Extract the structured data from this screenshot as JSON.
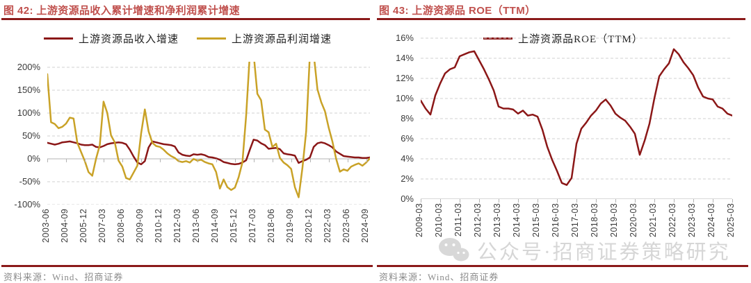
{
  "colors": {
    "title_text": "#C0504D",
    "rule_dark_red": "#8B1A1A",
    "series_revenue_red": "#8B1717",
    "series_profit_gold": "#C9A227",
    "series_roe_red": "#8B1717",
    "gridline": "#D0D0D0",
    "axis_line": "#B3B3B3",
    "axis_text": "#3A3A3A",
    "source_text": "#8A8A8A",
    "watermark_gray": "#B9B9B9"
  },
  "watermark": {
    "icon": "wechat-icon",
    "text": "公众号·招商证券策略研究"
  },
  "panels": [
    {
      "title": "图 42:  上游资源品收入累计增速和净利润累计增速",
      "source": "资料来源：Wind、招商证券",
      "chart_data": {
        "type": "line",
        "title": "上游资源品收入累计增速和净利润累计增速",
        "xlabel": "",
        "ylabel": "",
        "y_unit": "%",
        "ylim": [
          -100,
          200
        ],
        "y_step": 50,
        "grid": "horizontal-dashed",
        "legend_position": "top-center",
        "x_tick_every": 5,
        "x_tick_labels": [
          "2003-06",
          "2004-09",
          "2005-12",
          "2007-03",
          "2008-06",
          "2009-09",
          "2010-12",
          "2012-03",
          "2013-06",
          "2014-09",
          "2015-12",
          "2017-03",
          "2018-06",
          "2019-09",
          "2020-12",
          "2022-03",
          "2023-06",
          "2024-09"
        ],
        "x": [
          "2003-06",
          "2003-09",
          "2003-12",
          "2004-03",
          "2004-06",
          "2004-09",
          "2004-12",
          "2005-03",
          "2005-06",
          "2005-09",
          "2005-12",
          "2006-03",
          "2006-06",
          "2006-09",
          "2006-12",
          "2007-03",
          "2007-06",
          "2007-09",
          "2007-12",
          "2008-03",
          "2008-06",
          "2008-09",
          "2008-12",
          "2009-03",
          "2009-06",
          "2009-09",
          "2009-12",
          "2010-03",
          "2010-06",
          "2010-09",
          "2010-12",
          "2011-03",
          "2011-06",
          "2011-09",
          "2011-12",
          "2012-03",
          "2012-06",
          "2012-09",
          "2012-12",
          "2013-03",
          "2013-06",
          "2013-09",
          "2013-12",
          "2014-03",
          "2014-06",
          "2014-09",
          "2014-12",
          "2015-03",
          "2015-06",
          "2015-09",
          "2015-12",
          "2016-03",
          "2016-06",
          "2016-09",
          "2016-12",
          "2017-03",
          "2017-06",
          "2017-09",
          "2017-12",
          "2018-03",
          "2018-06",
          "2018-09",
          "2018-12",
          "2019-03",
          "2019-06",
          "2019-09",
          "2019-12",
          "2020-03",
          "2020-06",
          "2020-09",
          "2020-12",
          "2021-03",
          "2021-06",
          "2021-09",
          "2021-12",
          "2022-03",
          "2022-06",
          "2022-09",
          "2022-12",
          "2023-03",
          "2023-06",
          "2023-09",
          "2023-12",
          "2024-03",
          "2024-06",
          "2024-09",
          "2024-12"
        ],
        "series": [
          {
            "key": "revenue-growth",
            "name": "上游资源品收入增速",
            "color": "#8B1717",
            "values": [
              35,
              33,
              31,
              33,
              36,
              37,
              38,
              36,
              34,
              31,
              30,
              30,
              31,
              26,
              25,
              28,
              32,
              34,
              35,
              36,
              35,
              32,
              20,
              5,
              -8,
              -12,
              -5,
              25,
              38,
              36,
              34,
              32,
              31,
              30,
              27,
              14,
              9,
              7,
              6,
              10,
              9,
              10,
              8,
              4,
              3,
              1,
              -2,
              -7,
              -9,
              -11,
              -12,
              -11,
              -8,
              -3,
              20,
              42,
              40,
              34,
              30,
              22,
              23,
              24,
              21,
              12,
              10,
              9,
              7,
              -9,
              -5,
              -2,
              3,
              26,
              34,
              36,
              34,
              30,
              25,
              16,
              11,
              6,
              5,
              4,
              3,
              3,
              2,
              2,
              3
            ]
          },
          {
            "key": "profit-growth",
            "name": "上游资源品利润增速",
            "color": "#C9A227",
            "values": [
              185,
              80,
              76,
              67,
              70,
              77,
              90,
              88,
              35,
              15,
              -5,
              -29,
              -37,
              0,
              30,
              125,
              100,
              51,
              36,
              -4,
              -17,
              -42,
              -45,
              -30,
              -15,
              55,
              108,
              60,
              35,
              28,
              26,
              20,
              12,
              6,
              2,
              -5,
              -7,
              -5,
              -8,
              0,
              -4,
              -2,
              -7,
              -10,
              -12,
              -29,
              -65,
              -45,
              -62,
              -68,
              -63,
              -40,
              -8,
              95,
              230,
              230,
              142,
              128,
              64,
              58,
              26,
              33,
              2,
              -8,
              -14,
              -22,
              -62,
              -84,
              -20,
              60,
              230,
              230,
              152,
              124,
              104,
              68,
              38,
              0,
              -28,
              -23,
              -26,
              -17,
              -13,
              -10,
              -15,
              -8,
              1
            ]
          }
        ],
        "note": "profit series exceeds the +200% axis maximum around 2016-12~2017-03 and 2020-12~2021-03; the line is clipped at the plot top"
      }
    },
    {
      "title": "图 43:  上游资源品 ROE（TTM）",
      "source": "资料来源：Wind、招商证券",
      "chart_data": {
        "type": "line",
        "title": "上游资源品 ROE（TTM）",
        "xlabel": "",
        "ylabel": "",
        "y_unit": "%",
        "ylim": [
          0,
          16
        ],
        "y_step": 2,
        "grid": "horizontal-dashed",
        "legend_position": "top-center",
        "x_tick_every": 4,
        "x_tick_labels": [
          "2009-03",
          "2010-03",
          "2011-03",
          "2012-03",
          "2013-03",
          "2014-03",
          "2015-03",
          "2016-03",
          "2017-03",
          "2018-03",
          "2019-03",
          "2020-03",
          "2021-03",
          "2022-03",
          "2023-03",
          "2024-03",
          "2025-03"
        ],
        "x": [
          "2009-03",
          "2009-06",
          "2009-09",
          "2009-12",
          "2010-03",
          "2010-06",
          "2010-09",
          "2010-12",
          "2011-03",
          "2011-06",
          "2011-09",
          "2011-12",
          "2012-03",
          "2012-06",
          "2012-09",
          "2012-12",
          "2013-03",
          "2013-06",
          "2013-09",
          "2013-12",
          "2014-03",
          "2014-06",
          "2014-09",
          "2014-12",
          "2015-03",
          "2015-06",
          "2015-09",
          "2015-12",
          "2016-03",
          "2016-06",
          "2016-09",
          "2016-12",
          "2017-03",
          "2017-06",
          "2017-09",
          "2017-12",
          "2018-03",
          "2018-06",
          "2018-09",
          "2018-12",
          "2019-03",
          "2019-06",
          "2019-09",
          "2019-12",
          "2020-03",
          "2020-06",
          "2020-09",
          "2020-12",
          "2021-03",
          "2021-06",
          "2021-09",
          "2021-12",
          "2022-03",
          "2022-06",
          "2022-09",
          "2022-12",
          "2023-03",
          "2023-06",
          "2023-09",
          "2023-12",
          "2024-03",
          "2024-06",
          "2024-09",
          "2024-12",
          "2025-03"
        ],
        "series": [
          {
            "key": "roe-ttm",
            "name": "上游资源品ROE（TTM）",
            "color": "#8B1717",
            "values": [
              9.8,
              9.0,
              8.4,
              10.3,
              11.5,
              12.5,
              12.9,
              13.1,
              14.2,
              14.4,
              14.6,
              14.7,
              13.8,
              12.9,
              11.9,
              10.8,
              9.2,
              9.0,
              9.0,
              8.9,
              8.5,
              8.8,
              8.3,
              8.4,
              8.2,
              6.9,
              5.2,
              3.9,
              2.8,
              1.6,
              1.4,
              2.1,
              5.5,
              7.0,
              7.6,
              8.3,
              8.8,
              9.5,
              9.9,
              9.3,
              8.5,
              8.1,
              7.8,
              7.2,
              6.5,
              4.4,
              5.8,
              7.5,
              10.0,
              12.2,
              12.9,
              13.5,
              14.9,
              14.4,
              13.6,
              13.0,
              12.3,
              11.1,
              10.2,
              10.0,
              9.9,
              9.2,
              9.0,
              8.5,
              8.3
            ]
          }
        ]
      }
    }
  ]
}
